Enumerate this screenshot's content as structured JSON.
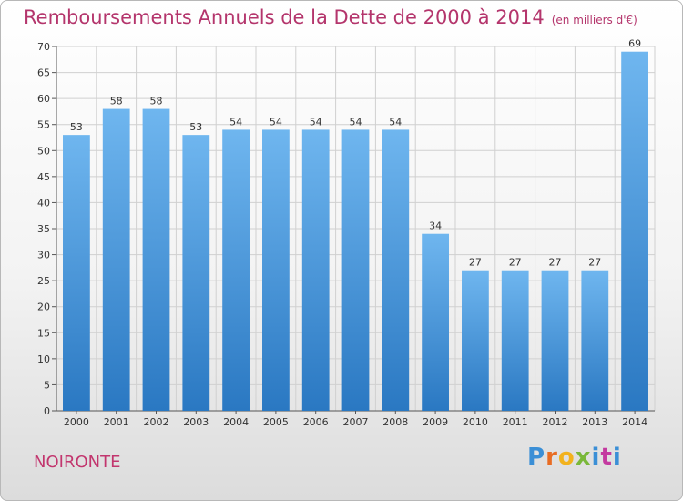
{
  "title": "Remboursements Annuels de la Dette de 2000 à 2014",
  "unit_label": "(en milliers d'€)",
  "commune": "NOIRONTE",
  "logo_text": "Proxiti",
  "colors": {
    "bar_top": "#6fb6ef",
    "bar_bottom": "#2a78c2",
    "title": "#b4356c",
    "grid": "#d0d0d0"
  },
  "chart_data": {
    "type": "bar",
    "title": "Remboursements Annuels de la Dette de 2000 à 2014",
    "ylabel": "(en milliers d'€)",
    "categories": [
      "2000",
      "2001",
      "2002",
      "2003",
      "2004",
      "2005",
      "2006",
      "2007",
      "2008",
      "2009",
      "2010",
      "2011",
      "2012",
      "2013",
      "2014"
    ],
    "values": [
      53,
      58,
      58,
      53,
      54,
      54,
      54,
      54,
      54,
      34,
      27,
      27,
      27,
      27,
      69
    ],
    "ylim": [
      0,
      70
    ],
    "yticks": [
      0,
      5,
      10,
      15,
      20,
      25,
      30,
      35,
      40,
      45,
      50,
      55,
      60,
      65,
      70
    ],
    "grid": true
  }
}
